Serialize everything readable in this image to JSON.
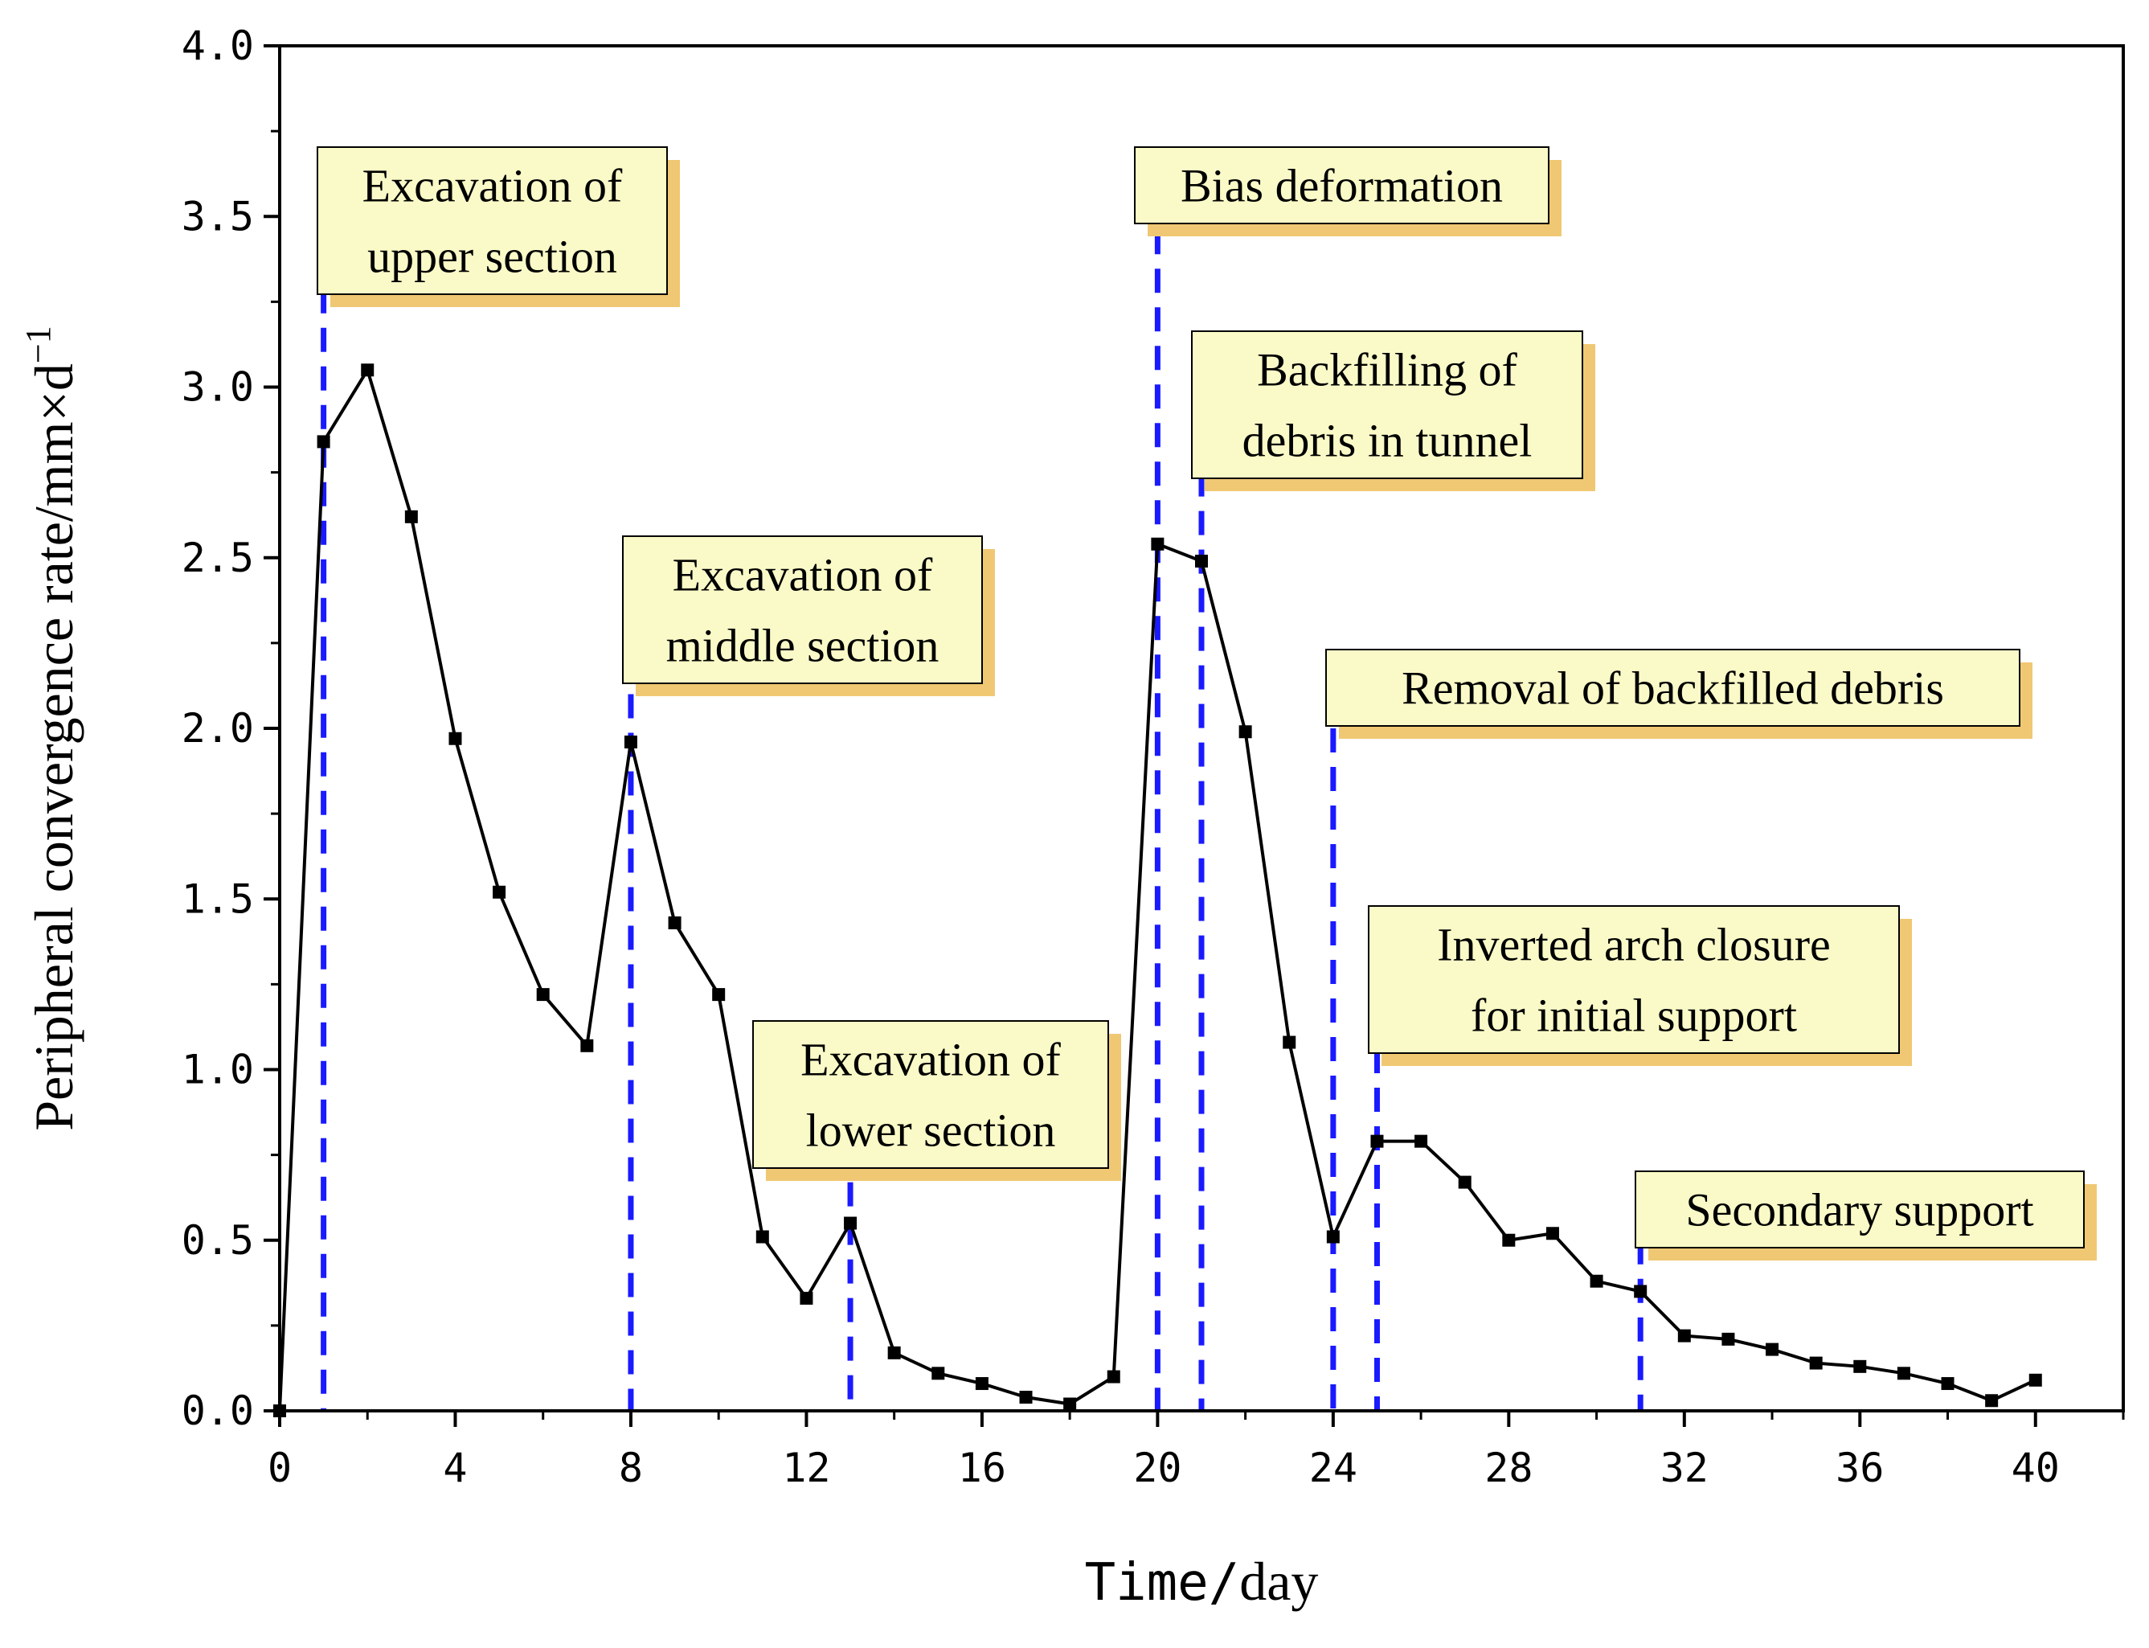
{
  "chart_data": {
    "type": "line",
    "title": "",
    "xlabel_parts": [
      "Time/",
      "day"
    ],
    "ylabel": "Peripheral convergence rate/mm×d",
    "ylabel_sup": "−1",
    "xlim": [
      0,
      42
    ],
    "ylim": [
      0,
      4.0
    ],
    "x_ticks": [
      0,
      4,
      8,
      12,
      16,
      20,
      24,
      28,
      32,
      36,
      40
    ],
    "x_tick_labels": [
      "0",
      "4",
      "8",
      "12",
      "16",
      "20",
      "24",
      "28",
      "32",
      "36",
      "40"
    ],
    "y_ticks": [
      0,
      0.5,
      1.0,
      1.5,
      2.0,
      2.5,
      3.0,
      3.5,
      4.0
    ],
    "y_tick_labels": [
      "0.0",
      "0.5",
      "1.0",
      "1.5",
      "2.0",
      "2.5",
      "3.0",
      "3.5",
      "4.0"
    ],
    "grid": false,
    "legend": "none",
    "series": [
      {
        "color": "#000000",
        "marker": "square",
        "x": [
          0,
          1,
          2,
          3,
          4,
          5,
          6,
          7,
          8,
          9,
          10,
          11,
          12,
          13,
          14,
          15,
          16,
          17,
          18,
          19,
          20,
          21,
          22,
          23,
          24,
          25,
          26,
          27,
          28,
          29,
          30,
          31,
          32,
          33,
          34,
          35,
          36,
          37,
          38,
          39,
          40
        ],
        "y": [
          0.0,
          2.84,
          3.05,
          2.62,
          1.97,
          1.52,
          1.22,
          1.07,
          1.96,
          1.43,
          1.22,
          0.51,
          0.33,
          0.55,
          0.17,
          0.11,
          0.08,
          0.04,
          0.02,
          0.1,
          2.54,
          2.49,
          1.99,
          1.08,
          0.51,
          0.79,
          0.79,
          0.67,
          0.5,
          0.52,
          0.38,
          0.35,
          0.22,
          0.21,
          0.18,
          0.14,
          0.13,
          0.11,
          0.08,
          0.03,
          0.09
        ]
      }
    ],
    "event_lines": {
      "color": "#1a1aff",
      "marks": [
        {
          "x": 1,
          "y_top": 3.4
        },
        {
          "x": 8,
          "y_top": 2.1
        },
        {
          "x": 13,
          "y_top": 0.67
        },
        {
          "x": 20,
          "y_top": 3.46
        },
        {
          "x": 21,
          "y_top": 2.75
        },
        {
          "x": 24,
          "y_top": 2.0
        },
        {
          "x": 25,
          "y_top": 1.06
        },
        {
          "x": 31,
          "y_top": 0.5
        }
      ]
    },
    "annotations": [
      {
        "lines": [
          "Excavation of",
          "upper section"
        ],
        "box_color": "#fafac8",
        "shadow_color": "#f0c873"
      },
      {
        "lines": [
          "Excavation of",
          "middle section"
        ],
        "box_color": "#fafac8",
        "shadow_color": "#f0c873"
      },
      {
        "lines": [
          "Excavation of",
          "lower section"
        ],
        "box_color": "#fafac8",
        "shadow_color": "#f0c873"
      },
      {
        "lines": [
          "Bias deformation"
        ],
        "box_color": "#fafac8",
        "shadow_color": "#f0c873"
      },
      {
        "lines": [
          "Backfilling of",
          "debris in  tunnel"
        ],
        "box_color": "#fafac8",
        "shadow_color": "#f0c873"
      },
      {
        "lines": [
          "Removal of backfilled debris"
        ],
        "box_color": "#fafac8",
        "shadow_color": "#f0c873"
      },
      {
        "lines": [
          "Inverted arch closure",
          "for initial support"
        ],
        "box_color": "#fafac8",
        "shadow_color": "#f0c873"
      },
      {
        "lines": [
          "Secondary support"
        ],
        "box_color": "#fafac8",
        "shadow_color": "#f0c873"
      }
    ]
  }
}
